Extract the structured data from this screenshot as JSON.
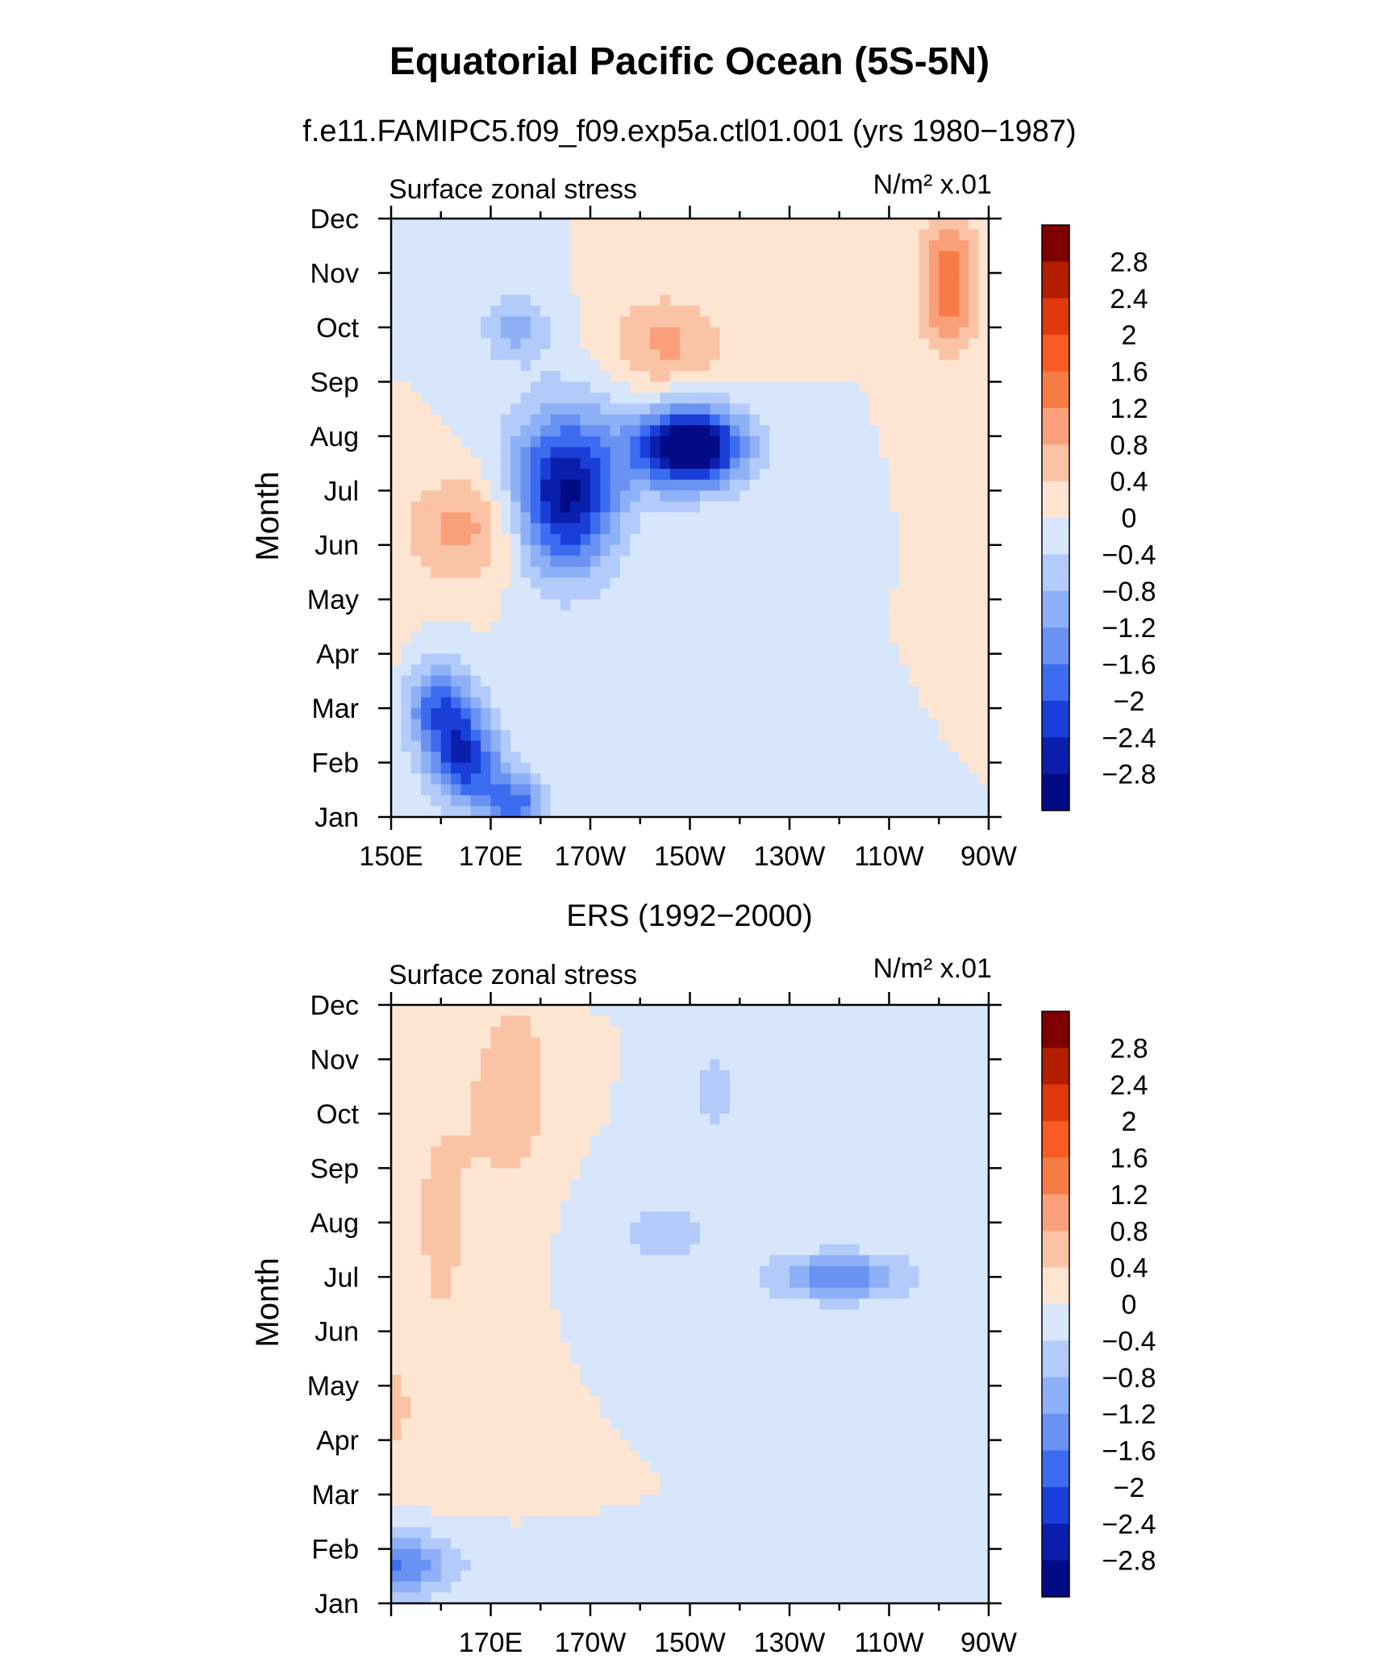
{
  "main_title": "Equatorial Pacific Ocean (5S-5N)",
  "chart_data": [
    {
      "type": "heatmap",
      "title": "f.e11.FAMIPC5.f09_f09.exp5a.ctl01.001 (yrs 1980−1987)",
      "left_label": "Surface zonal stress",
      "right_label": "N/m² x.01",
      "ylabel": "Month",
      "y_ticks": [
        "Jan",
        "Feb",
        "Mar",
        "Apr",
        "May",
        "Jun",
        "Jul",
        "Aug",
        "Sep",
        "Oct",
        "Nov",
        "Dec"
      ],
      "x_ticks": [
        "150E",
        "170E",
        "170W",
        "150W",
        "130W",
        "110W",
        "90W"
      ],
      "xlim": [
        150,
        270
      ],
      "x_tick_values": [
        150,
        170,
        190,
        210,
        230,
        250,
        270
      ],
      "grid": false,
      "blobs": [
        {
          "x": 130,
          "y": 3.5,
          "a": 3.5,
          "rx": 12,
          "ry": 0.9,
          "rot": -0.55
        },
        {
          "x": 210,
          "y": 6.8,
          "a": -3.6,
          "rx": 11,
          "ry": 0.75,
          "rot": -0.35
        },
        {
          "x": 185,
          "y": 6.1,
          "a": -1.7,
          "rx": 12,
          "ry": 1.6,
          "rot": -0.5
        },
        {
          "x": 185,
          "y": 5.8,
          "a": -1.3,
          "rx": 9,
          "ry": 1.3,
          "rot": 0
        },
        {
          "x": 160,
          "y": 2.0,
          "a": -1.9,
          "rx": 7,
          "ry": 0.8,
          "rot": 0
        },
        {
          "x": 165,
          "y": 1.0,
          "a": -2.2,
          "rx": 7,
          "ry": 0.8,
          "rot": 0
        },
        {
          "x": 175,
          "y": 0.2,
          "a": -1.8,
          "rx": 6,
          "ry": 0.6,
          "rot": 0
        },
        {
          "x": 165,
          "y": 5.3,
          "a": 1.0,
          "rx": 12,
          "ry": 1.0,
          "rot": -0.25
        },
        {
          "x": 205,
          "y": 8.7,
          "a": 0.9,
          "rx": 12,
          "ry": 0.9,
          "rot": 0
        },
        {
          "x": 262,
          "y": 9.8,
          "a": 1.5,
          "rx": 6,
          "ry": 1.2,
          "rot": 0
        },
        {
          "x": 175,
          "y": 9.0,
          "a": -1.0,
          "rx": 7,
          "ry": 0.6,
          "rot": 0
        }
      ],
      "contour_levels": [
        -2.8,
        -2.4,
        -2.0,
        -1.6,
        -1.2,
        -0.8,
        -0.4,
        0,
        0.4,
        0.8,
        1.2,
        1.6,
        2.0,
        2.4,
        2.8
      ]
    },
    {
      "type": "heatmap",
      "title": "ERS (1992−2000)",
      "left_label": "Surface zonal stress",
      "right_label": "N/m² x.01",
      "ylabel": "Month",
      "y_ticks": [
        "Jan",
        "Feb",
        "Mar",
        "Apr",
        "May",
        "Jun",
        "Jul",
        "Aug",
        "Sep",
        "Oct",
        "Nov",
        "Dec"
      ],
      "x_ticks": [
        "170E",
        "170W",
        "150W",
        "130W",
        "110W",
        "90W"
      ],
      "xlim": [
        150,
        270
      ],
      "x_tick_values": [
        170,
        190,
        210,
        230,
        250,
        270
      ],
      "grid": false,
      "blobs": [
        {
          "x": 135,
          "y": 3.5,
          "a": 2.0,
          "rx": 13,
          "ry": 0.9,
          "rot": -0.45
        },
        {
          "x": 240,
          "y": 6.0,
          "a": -1.5,
          "rx": 14,
          "ry": 0.45,
          "rot": 0
        },
        {
          "x": 205,
          "y": 6.8,
          "a": -0.5,
          "rx": 14,
          "ry": 1.0,
          "rot": 0
        },
        {
          "x": 198,
          "y": 11.5,
          "a": -1.6,
          "rx": 9,
          "ry": 0.3,
          "rot": 0
        },
        {
          "x": 150,
          "y": 0.7,
          "a": -1.7,
          "rx": 13,
          "ry": 0.6,
          "rot": 0
        },
        {
          "x": 175,
          "y": 9.5,
          "a": 0.6,
          "rx": 8,
          "ry": 2.0,
          "rot": 0
        },
        {
          "x": 160,
          "y": 7.0,
          "a": 0.45,
          "rx": 10,
          "ry": 4.0,
          "rot": 0
        },
        {
          "x": 215,
          "y": 9.4,
          "a": -0.5,
          "rx": 8,
          "ry": 1.2,
          "rot": 0
        }
      ],
      "contour_levels": [
        -2.8,
        -2.4,
        -2.0,
        -1.6,
        -1.2,
        -0.8,
        -0.4,
        0,
        0.4,
        0.8,
        1.2,
        1.6,
        2.0,
        2.4,
        2.8
      ]
    }
  ],
  "colorbar": {
    "labels": [
      "2.8",
      "2.4",
      "2",
      "1.6",
      "1.2",
      "0.8",
      "0.4",
      "0",
      "−0.4",
      "−0.8",
      "−1.2",
      "−1.6",
      "−2",
      "−2.4",
      "−2.8"
    ],
    "colors": [
      "#7f0000",
      "#b31d00",
      "#e3380b",
      "#f95b22",
      "#f77b45",
      "#f9a07a",
      "#fac3a6",
      "#fde5d2",
      "#d7e6fb",
      "#b2cbfa",
      "#8eb0f7",
      "#6a92f2",
      "#3c6cf0",
      "#1a3fd9",
      "#0a1fab",
      "#020a85"
    ]
  }
}
